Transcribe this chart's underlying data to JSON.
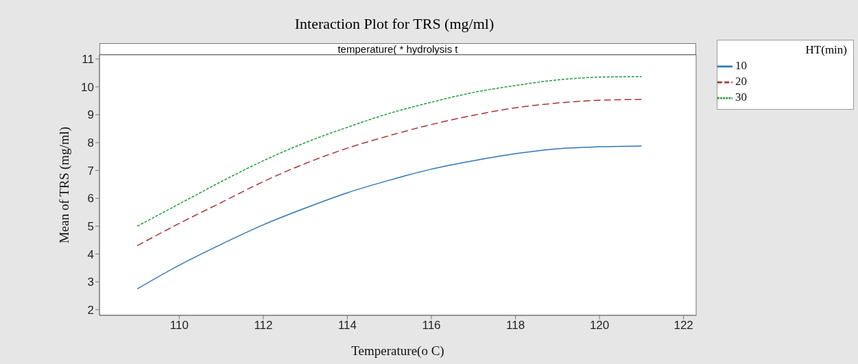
{
  "chart_data": {
    "type": "line",
    "title": "Interaction Plot for TRS (mg/ml)",
    "subtitle": "temperature( * hydrolysis t",
    "xlabel": "Temperature(o C)",
    "ylabel": "Mean of TRS (mg/ml)",
    "legend_title": "HT(min)",
    "legend": "top right",
    "grid": false,
    "marker": "none",
    "x": [
      109,
      110,
      111,
      112,
      113,
      114,
      115,
      116,
      117,
      118,
      119,
      120,
      121
    ],
    "xlim": [
      108.1,
      122.3
    ],
    "xticks": [
      110,
      112,
      114,
      116,
      118,
      120,
      122
    ],
    "ylim": [
      1.8,
      11.15
    ],
    "yticks": [
      2,
      3,
      4,
      5,
      6,
      7,
      8,
      9,
      10,
      11
    ],
    "series": [
      {
        "name": "10",
        "color": "#2e75b6",
        "line_style": "solid",
        "values": [
          2.75,
          3.6,
          4.35,
          5.05,
          5.65,
          6.2,
          6.65,
          7.05,
          7.35,
          7.6,
          7.78,
          7.85,
          7.88
        ]
      },
      {
        "name": "20",
        "color": "#a83232",
        "line_style": "dashed",
        "values": [
          4.3,
          5.1,
          5.85,
          6.6,
          7.25,
          7.8,
          8.25,
          8.65,
          8.98,
          9.25,
          9.42,
          9.52,
          9.55
        ]
      },
      {
        "name": "30",
        "color": "#1f9a3a",
        "line_style": "dotted",
        "values": [
          5.0,
          5.8,
          6.6,
          7.35,
          8.0,
          8.55,
          9.05,
          9.45,
          9.8,
          10.05,
          10.25,
          10.35,
          10.37
        ]
      }
    ]
  }
}
